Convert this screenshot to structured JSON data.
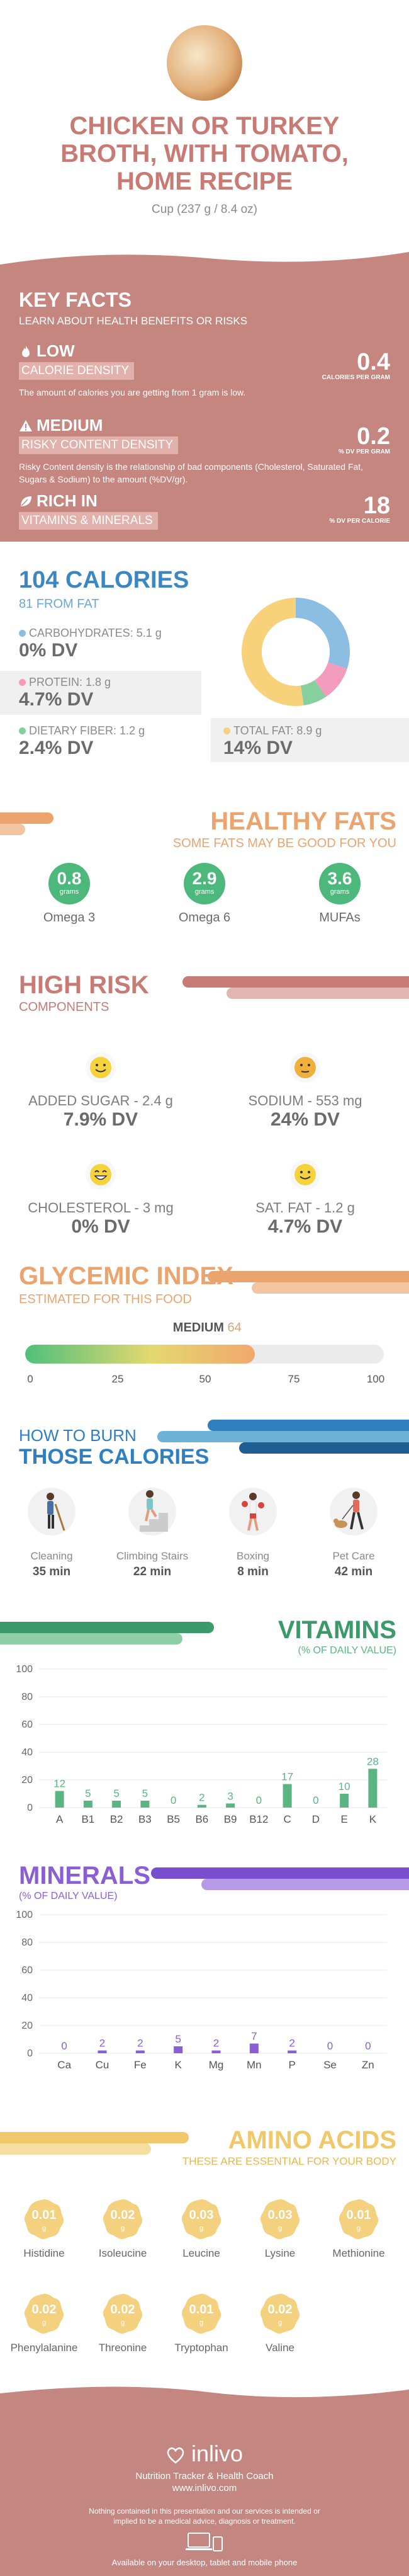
{
  "header": {
    "title_lines": [
      "CHICKEN OR TURKEY",
      "BROTH, WITH TOMATO,",
      "HOME RECIPE"
    ],
    "serving": "Cup (237 g / 8.4 oz)"
  },
  "key_facts": {
    "title": "KEY FACTS",
    "subtitle": "LEARN ABOUT HEALTH BENEFITS OR RISKS",
    "items": [
      {
        "level": "LOW",
        "label": "CALORIE DENSITY",
        "description": "The amount of calories you are getting from 1 gram is low.",
        "value": "0.4",
        "unit": "CALORIES PER GRAM",
        "icon": "flame-icon"
      },
      {
        "level": "MEDIUM",
        "label": "RISKY CONTENT DENSITY",
        "description": "Risky Content density is the relationship of bad components (Cholesterol, Saturated Fat, Sugars & Sodium) to the amount (%DV/gr).",
        "value": "0.2",
        "unit": "% DV PER GRAM",
        "icon": "warning-icon"
      },
      {
        "level": "RICH  IN",
        "label": "VITAMINS & MINERALS",
        "description": "",
        "value": "18",
        "unit": "% DV PER CALORIE",
        "icon": "leaf-icon"
      }
    ]
  },
  "calories": {
    "title": "104 CALORIES",
    "subtitle": "81 FROM FAT",
    "nutrients": [
      {
        "name": "CARBOHYDRATES: 5.1 g",
        "dv": "0% DV",
        "color": "#8cbde3"
      },
      {
        "name": "PROTEIN: 1.8 g",
        "dv": "4.7% DV",
        "color": "#f29bbd"
      },
      {
        "name": "DIETARY FIBER: 1.2 g",
        "dv": "2.4% DV",
        "color": "#86cf9e"
      },
      {
        "name": "TOTAL FAT: 8.9 g",
        "dv": "14% DV",
        "color": "#f7d27a"
      }
    ],
    "donut": [
      {
        "value": 5.1,
        "color": "#8cbde3"
      },
      {
        "value": 1.8,
        "color": "#f29bbd"
      },
      {
        "value": 1.2,
        "color": "#86cf9e"
      },
      {
        "value": 8.9,
        "color": "#f7d27a"
      }
    ]
  },
  "healthy_fats": {
    "title": "HEALTHY FATS",
    "subtitle": "SOME FATS MAY BE GOOD FOR YOU",
    "items": [
      {
        "value": "0.8",
        "unit": "grams",
        "name": "Omega 3"
      },
      {
        "value": "2.9",
        "unit": "grams",
        "name": "Omega 6"
      },
      {
        "value": "3.6",
        "unit": "grams",
        "name": "MUFAs"
      }
    ]
  },
  "high_risk": {
    "title": "HIGH RISK",
    "subtitle": "COMPONENTS",
    "items": [
      {
        "name": "ADDED SUGAR - 2.4 g",
        "dv": "7.9% DV",
        "face": "smile"
      },
      {
        "name": "SODIUM - 553 mg",
        "dv": "24% DV",
        "face": "neutral"
      },
      {
        "name": "CHOLESTEROL - 3 mg",
        "dv": "0% DV",
        "face": "grin"
      },
      {
        "name": "SAT. FAT - 1.2 g",
        "dv": "4.7% DV",
        "face": "smile"
      }
    ]
  },
  "glycemic": {
    "title": "GLYCEMIC INDEX",
    "subtitle": "ESTIMATED FOR THIS FOOD",
    "level": "MEDIUM",
    "value": 64,
    "value_text": "64",
    "ticks": [
      "0",
      "25",
      "50",
      "75",
      "100"
    ]
  },
  "burn": {
    "title1": "HOW TO BURN",
    "title2": "THOSE CALORIES",
    "activities": [
      {
        "name": "Cleaning",
        "minutes": "35 min"
      },
      {
        "name": "Climbing Stairs",
        "minutes": "22 min"
      },
      {
        "name": "Boxing",
        "minutes": "8 min"
      },
      {
        "name": "Pet Care",
        "minutes": "42 min"
      }
    ]
  },
  "vitamins": {
    "title": "VITAMINS",
    "subtitle": "(% OF DAILY VALUE)"
  },
  "minerals": {
    "title": "MINERALS",
    "subtitle": "(% OF DAILY VALUE)"
  },
  "chart_data": [
    {
      "type": "bar",
      "categories": [
        "A",
        "B1",
        "B2",
        "B3",
        "B5",
        "B6",
        "B9",
        "B12",
        "C",
        "D",
        "E",
        "K"
      ],
      "values": [
        12,
        5,
        5,
        5,
        0,
        2,
        3,
        0,
        17,
        0,
        10,
        28
      ],
      "ylim": [
        0,
        100
      ],
      "yticks": [
        0,
        20,
        40,
        60,
        80,
        100
      ],
      "grid": true,
      "color": "#5ab582"
    },
    {
      "type": "bar",
      "categories": [
        "Ca",
        "Cu",
        "Fe",
        "K",
        "Mg",
        "Mn",
        "P",
        "Se",
        "Zn"
      ],
      "values": [
        0,
        2,
        2,
        5,
        2,
        7,
        2,
        0,
        0
      ],
      "ylim": [
        0,
        100
      ],
      "yticks": [
        0,
        20,
        40,
        60,
        80,
        100
      ],
      "grid": true,
      "color": "#8a5fd6"
    }
  ],
  "amino_acids": {
    "title": "AMINO ACIDS",
    "subtitle": "THESE ARE ESSENTIAL FOR YOUR BODY",
    "items": [
      {
        "value": "0.01",
        "unit": "g",
        "name": "Histidine"
      },
      {
        "value": "0.02",
        "unit": "g",
        "name": "Isoleucine"
      },
      {
        "value": "0.03",
        "unit": "g",
        "name": "Leucine"
      },
      {
        "value": "0.03",
        "unit": "g",
        "name": "Lysine"
      },
      {
        "value": "0.01",
        "unit": "g",
        "name": "Methionine"
      },
      {
        "value": "0.02",
        "unit": "g",
        "name": "Phenylalanine"
      },
      {
        "value": "0.02",
        "unit": "g",
        "name": "Threonine"
      },
      {
        "value": "0.01",
        "unit": "g",
        "name": "Tryptophan"
      },
      {
        "value": "0.02",
        "unit": "g",
        "name": "Valine"
      }
    ]
  },
  "footer": {
    "brand": "inlivo",
    "tagline": "Nutrition Tracker & Health Coach",
    "url": "www.inlivo.com",
    "disclaimer": "Nothing contained in this presentation and our services is intended or implied to be a medical advice, diagnosis or treatment.",
    "available": "Available on your desktop, tablet and mobile phone"
  },
  "colors": {
    "rose": "#c58680",
    "blue": "#3b87c4",
    "orange": "#eca46f",
    "green": "#4db87b",
    "purple": "#8a5fd6",
    "gold": "#f0c86a"
  }
}
